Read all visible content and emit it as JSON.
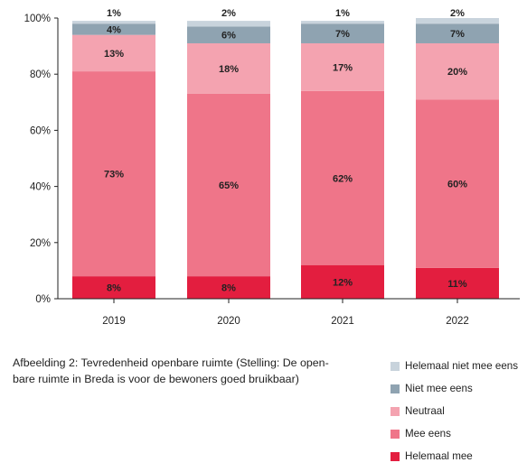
{
  "chart_data": {
    "type": "bar",
    "stacked": true,
    "categories": [
      "2019",
      "2020",
      "2021",
      "2022"
    ],
    "series": [
      {
        "name": "Helemaal mee",
        "color": "#e31e3f",
        "values": [
          8,
          8,
          12,
          11
        ]
      },
      {
        "name": "Mee eens",
        "color": "#ef7589",
        "values": [
          73,
          65,
          62,
          60
        ]
      },
      {
        "name": "Neutraal",
        "color": "#f4a3b0",
        "values": [
          13,
          18,
          17,
          20
        ]
      },
      {
        "name": "Niet mee eens",
        "color": "#8fa3b1",
        "values": [
          4,
          6,
          7,
          7
        ]
      },
      {
        "name": "Helemaal niet mee eens",
        "color": "#c8d3dc",
        "values": [
          1,
          2,
          1,
          2
        ]
      }
    ],
    "ylim": [
      0,
      100
    ],
    "yticks": [
      "0%",
      "20%",
      "40%",
      "60%",
      "80%",
      "100%"
    ],
    "ytick_values": [
      0,
      20,
      40,
      60,
      80,
      100
    ],
    "grid": false,
    "legend_position": "bottom-right",
    "legend_order": [
      "Helemaal niet mee eens",
      "Niet mee eens",
      "Neutraal",
      "Mee eens",
      "Helemaal mee"
    ],
    "data_labels": [
      [
        "8%",
        "73%",
        "13%",
        "4%",
        "1%"
      ],
      [
        "8%",
        "65%",
        "18%",
        "6%",
        "2%"
      ],
      [
        "12%",
        "62%",
        "17%",
        "7%",
        "1%"
      ],
      [
        "11%",
        "60%",
        "20%",
        "7%",
        "2%"
      ]
    ]
  },
  "caption": {
    "line1": "Afbeelding 2: Tevredenheid openbare ruimte (Stelling: De open-",
    "line2": "bare ruimte in Breda is voor de bewoners goed bruikbaar)"
  }
}
